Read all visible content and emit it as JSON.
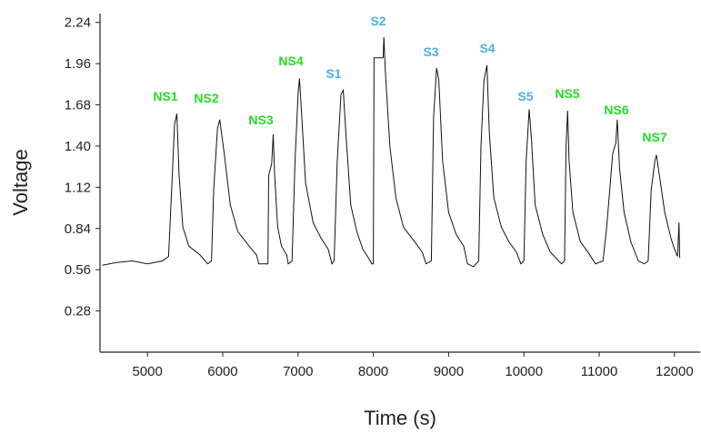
{
  "chart_data": {
    "type": "line",
    "x_label": "Time (s)",
    "y_label": "Voltage",
    "color": "#111111",
    "x": [
      4400,
      4600,
      4800,
      5000,
      5200,
      5280,
      5330,
      5360,
      5390,
      5420,
      5470,
      5550,
      5700,
      5800,
      5850,
      5880,
      5930,
      5960,
      6020,
      6100,
      6200,
      6350,
      6450,
      6480,
      6600,
      6610,
      6650,
      6670,
      6690,
      6730,
      6780,
      6850,
      6870,
      6920,
      6960,
      7000,
      7020,
      7050,
      7100,
      7200,
      7300,
      7400,
      7450,
      7480,
      7520,
      7570,
      7600,
      7640,
      7700,
      7780,
      7860,
      7960,
      7980,
      8000,
      8010,
      8130,
      8140,
      8160,
      8220,
      8300,
      8400,
      8550,
      8650,
      8700,
      8770,
      8800,
      8840,
      8870,
      8920,
      9000,
      9100,
      9200,
      9250,
      9330,
      9400,
      9430,
      9470,
      9510,
      9540,
      9600,
      9700,
      9800,
      9900,
      9960,
      10000,
      10030,
      10070,
      10100,
      10150,
      10250,
      10350,
      10500,
      10540,
      10560,
      10580,
      10600,
      10650,
      10750,
      10850,
      10950,
      11050,
      11100,
      11180,
      11220,
      11240,
      11270,
      11330,
      11420,
      11520,
      11600,
      11650,
      11690,
      11740,
      11760,
      11800,
      11870,
      11950,
      12000,
      12040,
      12060,
      12070
    ],
    "values": [
      0.59,
      0.61,
      0.62,
      0.6,
      0.62,
      0.65,
      1.2,
      1.55,
      1.62,
      1.2,
      0.85,
      0.72,
      0.66,
      0.6,
      0.62,
      1.1,
      1.52,
      1.58,
      1.35,
      1.0,
      0.82,
      0.72,
      0.66,
      0.6,
      0.6,
      1.2,
      1.28,
      1.48,
      1.2,
      0.85,
      0.72,
      0.66,
      0.6,
      0.62,
      1.3,
      1.75,
      1.86,
      1.6,
      1.15,
      0.88,
      0.78,
      0.7,
      0.6,
      0.62,
      1.3,
      1.75,
      1.78,
      1.45,
      1.0,
      0.82,
      0.7,
      0.62,
      0.6,
      0.6,
      2.0,
      2.0,
      2.14,
      1.9,
      1.4,
      1.05,
      0.85,
      0.75,
      0.68,
      0.6,
      0.62,
      1.6,
      1.93,
      1.85,
      1.3,
      0.95,
      0.8,
      0.72,
      0.6,
      0.58,
      0.62,
      1.4,
      1.85,
      1.95,
      1.5,
      1.05,
      0.85,
      0.75,
      0.68,
      0.6,
      0.62,
      1.3,
      1.65,
      1.45,
      1.0,
      0.8,
      0.68,
      0.6,
      0.62,
      1.4,
      1.64,
      1.3,
      0.95,
      0.75,
      0.68,
      0.6,
      0.62,
      0.85,
      1.35,
      1.42,
      1.58,
      1.25,
      0.95,
      0.75,
      0.62,
      0.6,
      0.62,
      1.1,
      1.3,
      1.34,
      1.2,
      0.95,
      0.78,
      0.7,
      0.65,
      0.88,
      0.64
    ],
    "xlim": [
      4370,
      12340
    ],
    "xticks": [
      5000,
      6000,
      7000,
      8000,
      9000,
      10000,
      11000,
      12000
    ],
    "ylim": [
      0,
      2.3
    ],
    "yticks": [
      0.28,
      0.56,
      0.84,
      1.12,
      {
        "value": 1.4,
        "label": "1.40"
      },
      1.68,
      1.96,
      2.24
    ],
    "annotations": [
      {
        "text": "NS1",
        "color": "#22dd22"
      },
      {
        "text": "NS2",
        "color": "#22dd22"
      },
      {
        "text": "NS3",
        "color": "#22dd22"
      },
      {
        "text": "NS4",
        "color": "#22dd22"
      },
      {
        "text": "S1",
        "color": "#4ab0e8"
      },
      {
        "text": "S2",
        "color": "#4ab0e8"
      },
      {
        "text": "S3",
        "color": "#4ab0e8"
      },
      {
        "text": "S4",
        "color": "#4ab0e8"
      },
      {
        "text": "S5",
        "color": "#4ab0e8"
      },
      {
        "text": "NS5",
        "color": "#22dd22"
      },
      {
        "text": "NS6",
        "color": "#22dd22"
      },
      {
        "text": "NS7",
        "color": "#22dd22"
      }
    ]
  }
}
